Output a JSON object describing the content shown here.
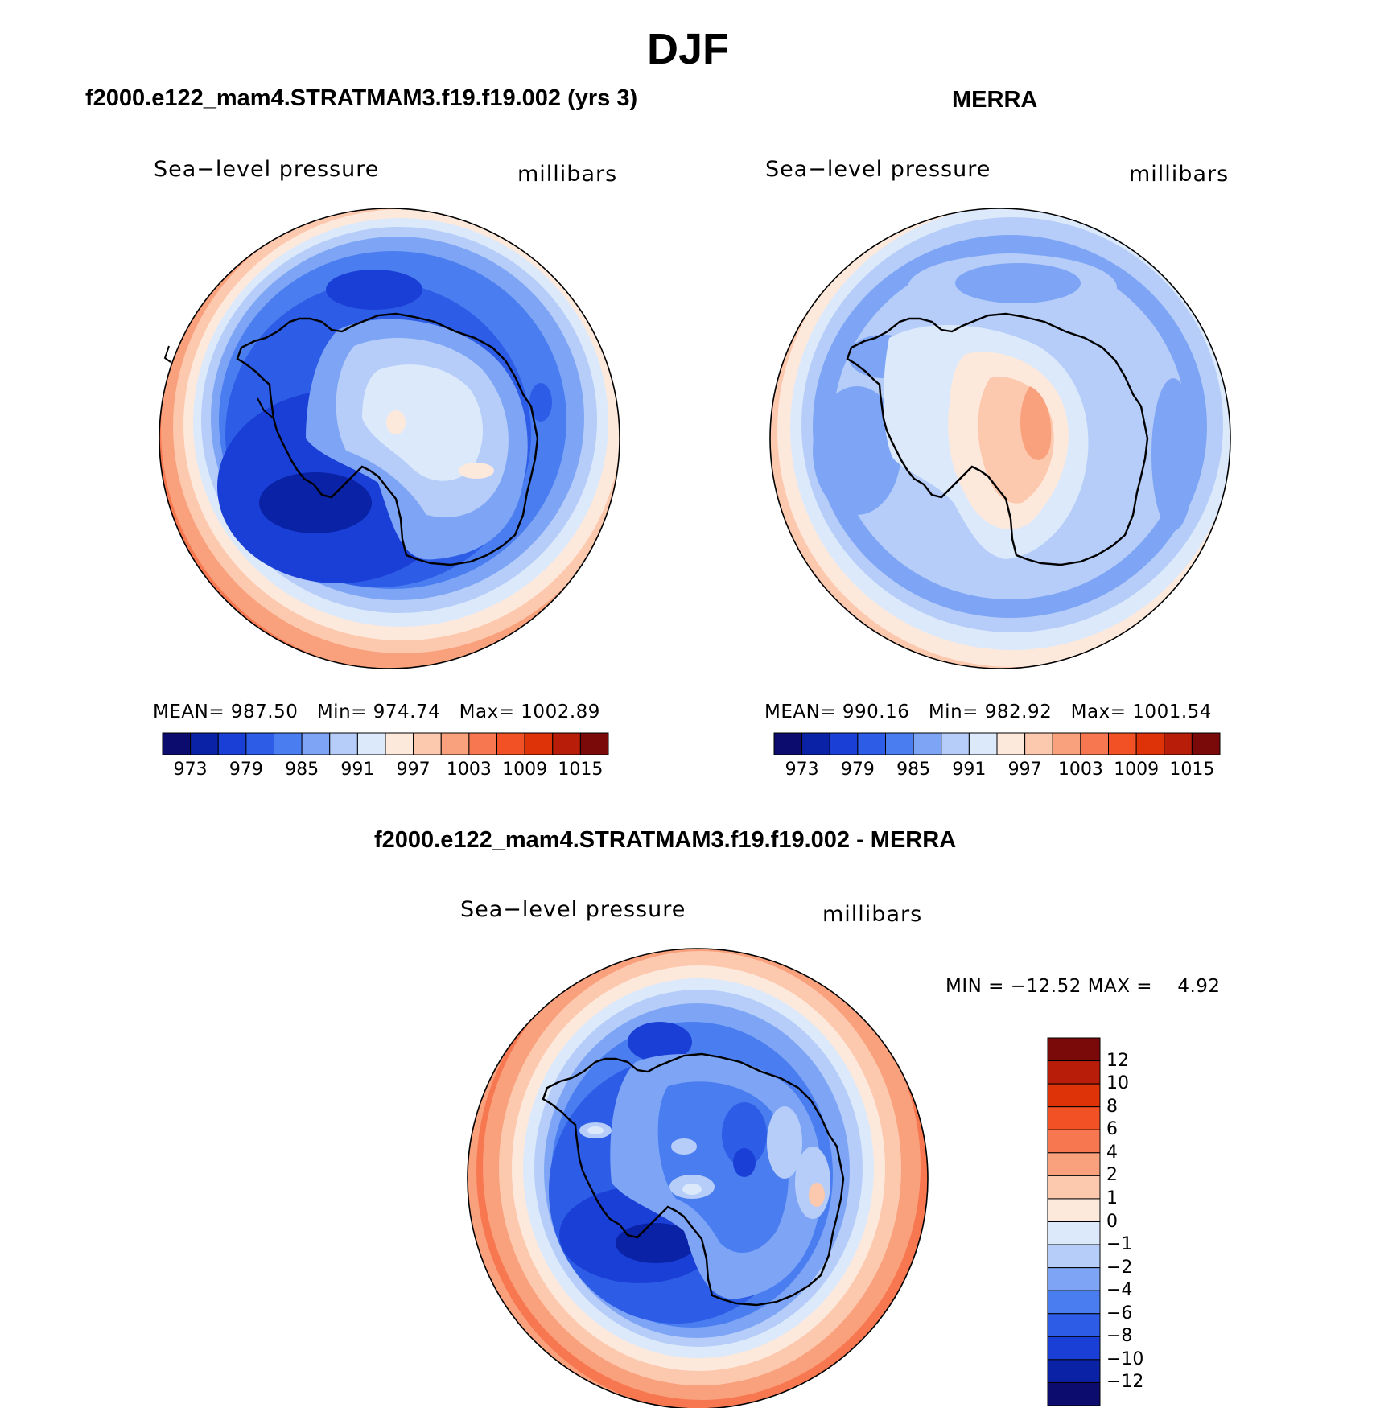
{
  "title": "DJF",
  "panels": [
    {
      "id": "model",
      "title": "f2000.e122_mam4.STRATMAM3.f19.f19.002 (yrs 3)",
      "variable": "Sea−level pressure",
      "units": "millibars",
      "stats": {
        "mean_label": "MEAN=",
        "mean": "987.50",
        "min_label": "Min=",
        "min": "974.74",
        "max_label": "Max=",
        "max": "1002.89"
      }
    },
    {
      "id": "obs",
      "title": "MERRA",
      "variable": "Sea−level pressure",
      "units": "millibars",
      "stats": {
        "mean_label": "MEAN=",
        "mean": "990.16",
        "min_label": "Min=",
        "min": "982.92",
        "max_label": "Max=",
        "max": "1001.54"
      }
    },
    {
      "id": "diff",
      "title": "f2000.e122_mam4.STRATMAM3.f19.f19.002 - MERRA",
      "variable": "Sea−level pressure",
      "units": "millibars",
      "minmax": "MIN = −12.52 MAX =    4.92"
    }
  ],
  "abs_colorbar": {
    "colors": [
      "#0c0b6e",
      "#0a22a6",
      "#1a3fd6",
      "#2d5ce6",
      "#4a7ef0",
      "#7ea5f5",
      "#b5cdf8",
      "#dbe9fb",
      "#fde9dc",
      "#fcc8ae",
      "#f9a07c",
      "#f77750",
      "#f25125",
      "#de3208",
      "#b81d0a",
      "#7a0a0a"
    ],
    "labels": [
      "973",
      "979",
      "985",
      "991",
      "997",
      "1003",
      "1009",
      "1015"
    ]
  },
  "diff_colorbar": {
    "colors_top_to_bottom": [
      "#7a0a0a",
      "#b81d0a",
      "#de3208",
      "#f25125",
      "#f77750",
      "#f9a07c",
      "#fcc8ae",
      "#fde9dc",
      "#dbe9fb",
      "#b5cdf8",
      "#7ea5f5",
      "#4a7ef0",
      "#2d5ce6",
      "#1a3fd6",
      "#0a22a6",
      "#0c0b6e"
    ],
    "labels": [
      "12",
      "10",
      "8",
      "6",
      "4",
      "2",
      "1",
      "0",
      "−1",
      "−2",
      "−4",
      "−6",
      "−8",
      "−10",
      "−12"
    ]
  }
}
